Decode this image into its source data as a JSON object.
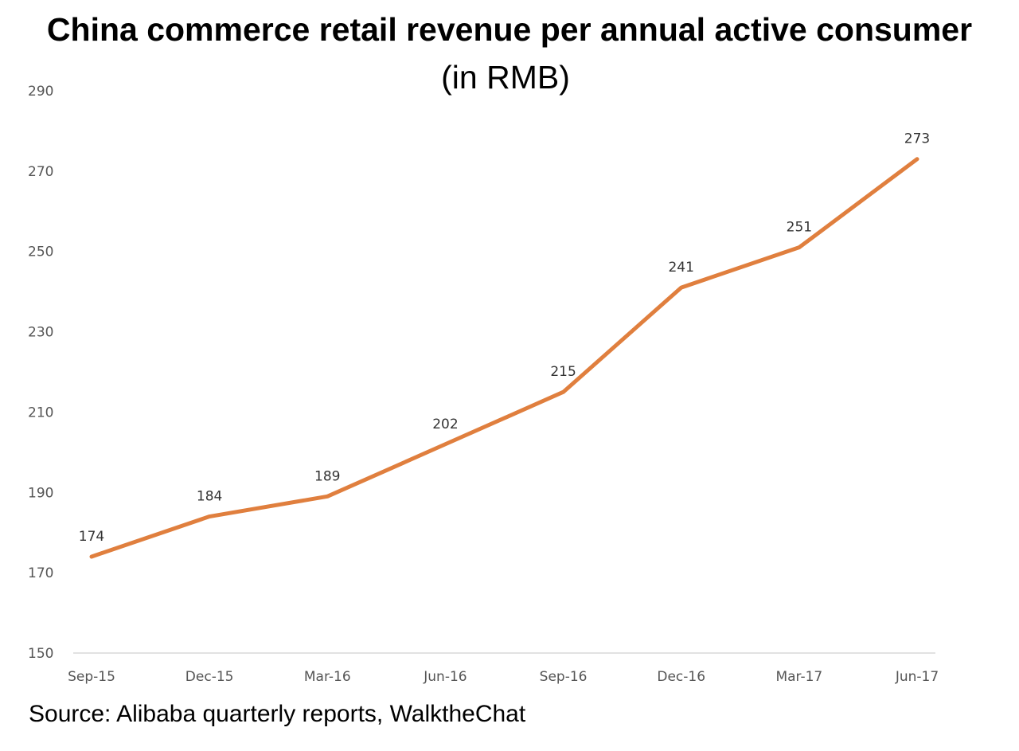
{
  "chart_data": {
    "type": "line",
    "title": "China commerce retail revenue per annual active consumer",
    "subtitle": "(in RMB)",
    "categories": [
      "Sep-15",
      "Dec-15",
      "Mar-16",
      "Jun-16",
      "Sep-16",
      "Dec-16",
      "Mar-17",
      "Jun-17"
    ],
    "series": [
      {
        "values": [
          174,
          184,
          189,
          202,
          215,
          241,
          251,
          273
        ],
        "color": "#e07f3e"
      }
    ],
    "ylim": [
      150,
      290
    ],
    "yticks": [
      150,
      170,
      190,
      210,
      230,
      250,
      270,
      290
    ],
    "data_labels": true,
    "grid": false,
    "legend": "none"
  },
  "source": "Source: Alibaba quarterly reports, WalktheChat"
}
